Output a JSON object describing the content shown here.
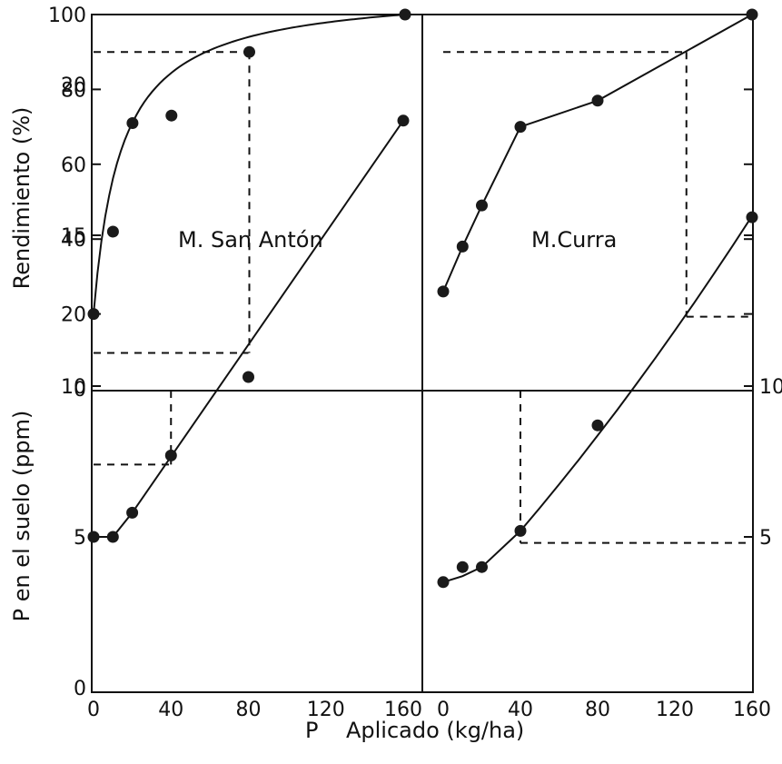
{
  "figure": {
    "ylabel_top": "Rendimiento (%)",
    "ylabel_bottom": "P en el suelo (ppm)",
    "xlabel": "P    Aplicado (kg/ha)"
  },
  "chart_data": [
    {
      "type": "scatter",
      "panel": "top-left",
      "title": "M. San Antón",
      "xlim": [
        0,
        160
      ],
      "ylim": [
        0,
        100
      ],
      "yticks": [
        0,
        20,
        40,
        60,
        80,
        100
      ],
      "x": [
        0,
        10,
        20,
        40,
        80,
        160
      ],
      "y": [
        20,
        42,
        71,
        73,
        90,
        100
      ],
      "curve": "smooth",
      "annotations": "dashed reference: 90% yield at P = 80 kg/ha"
    },
    {
      "type": "line",
      "panel": "top-right",
      "title": "M.Curra",
      "xlim": [
        0,
        160
      ],
      "ylim": [
        0,
        100
      ],
      "x": [
        0,
        10,
        20,
        40,
        80,
        160
      ],
      "y": [
        26,
        38,
        49,
        70,
        77,
        100
      ],
      "annotations": "dashed reference: 90% yield at P ≈ 126 kg/ha"
    },
    {
      "type": "line",
      "panel": "bottom-left",
      "xlim": [
        0,
        160
      ],
      "ylim": [
        0,
        20
      ],
      "xticks": [
        0,
        40,
        80,
        120,
        160
      ],
      "yticks": [
        0,
        5,
        10,
        15,
        20
      ],
      "x": [
        0,
        10,
        20,
        40,
        80,
        160
      ],
      "y": [
        5,
        5,
        5.8,
        7.7,
        10.3,
        18.8
      ],
      "annotations": "dashed references: P=40 → 7.4 ppm; P=80 → 11.1 ppm"
    },
    {
      "type": "line",
      "panel": "bottom-right",
      "xlim": [
        0,
        160
      ],
      "ylim": [
        0,
        20
      ],
      "xticks": [
        0,
        40,
        80,
        120,
        160
      ],
      "yticks_right": [
        5,
        10
      ],
      "x": [
        0,
        10,
        20,
        40,
        80,
        160
      ],
      "y": [
        3.5,
        4,
        4,
        5.2,
        8.7,
        15.6
      ],
      "annotations": "dashed references: P=40 → 4.8 ppm; P≈126 → 12.3 ppm"
    }
  ]
}
